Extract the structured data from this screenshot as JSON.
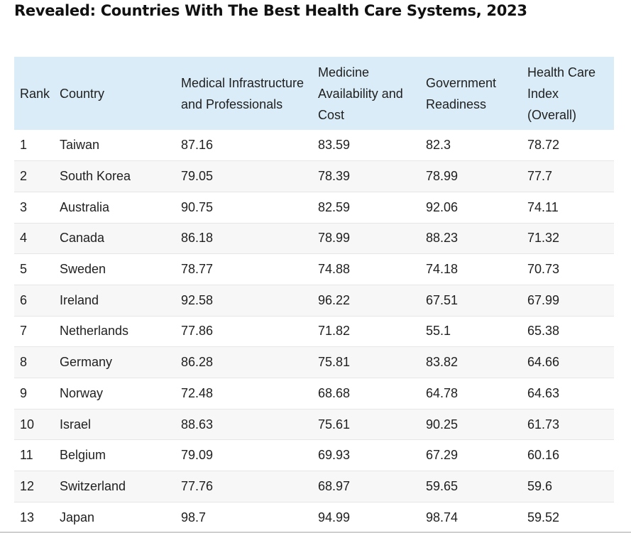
{
  "title": "Revealed: Countries With The Best Health Care Systems, 2023",
  "table": {
    "columns": [
      "Rank",
      "Country",
      "Medical Infrastructure and Professionals",
      "Medicine Availability and Cost",
      "Government Readiness",
      "Health Care Index (Overall)"
    ],
    "rows": [
      [
        "1",
        "Taiwan",
        "87.16",
        "83.59",
        "82.3",
        "78.72"
      ],
      [
        "2",
        "South Korea",
        "79.05",
        "78.39",
        "78.99",
        "77.7"
      ],
      [
        "3",
        "Australia",
        "90.75",
        "82.59",
        "92.06",
        "74.11"
      ],
      [
        "4",
        "Canada",
        "86.18",
        "78.99",
        "88.23",
        "71.32"
      ],
      [
        "5",
        "Sweden",
        "78.77",
        "74.88",
        "74.18",
        "70.73"
      ],
      [
        "6",
        "Ireland",
        "92.58",
        "96.22",
        "67.51",
        "67.99"
      ],
      [
        "7",
        "Netherlands",
        "77.86",
        "71.82",
        "55.1",
        "65.38"
      ],
      [
        "8",
        "Germany",
        "86.28",
        "75.81",
        "83.82",
        "64.66"
      ],
      [
        "9",
        "Norway",
        "72.48",
        "68.68",
        "64.78",
        "64.63"
      ],
      [
        "10",
        "Israel",
        "88.63",
        "75.61",
        "90.25",
        "61.73"
      ],
      [
        "11",
        "Belgium",
        "79.09",
        "69.93",
        "67.29",
        "60.16"
      ],
      [
        "12",
        "Switzerland",
        "77.76",
        "68.97",
        "59.65",
        "59.6"
      ],
      [
        "13",
        "Japan",
        "98.7",
        "94.99",
        "98.74",
        "59.52"
      ]
    ]
  },
  "colors": {
    "header_background": "#d9ecf7",
    "row_alt_background": "#f7f7f7",
    "row_border": "#e6e6e6",
    "text": "#1f1f1f"
  }
}
